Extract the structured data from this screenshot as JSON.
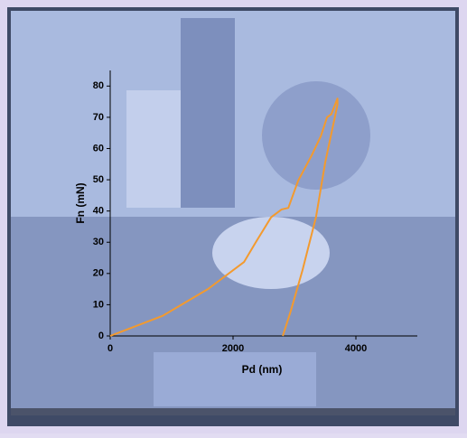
{
  "chart_data": {
    "type": "line",
    "x_label": "Pd (nm)",
    "y_label": "Fn (mN)",
    "xlim": [
      0,
      5000
    ],
    "xticks": [
      0,
      2000,
      4000
    ],
    "ylim": [
      0,
      85
    ],
    "yticks": [
      0,
      10,
      20,
      30,
      40,
      50,
      60,
      70,
      80
    ],
    "series": [
      {
        "color": "#f39a2e",
        "x": [
          0,
          850,
          1590,
          2180,
          2370,
          2620,
          2790,
          2900,
          3060,
          3280,
          3430,
          3530,
          3600,
          3700,
          3700,
          3500,
          3350,
          3130,
          2940,
          2810
        ],
        "values": [
          0,
          6.4,
          15,
          23.7,
          30,
          38,
          40.5,
          41,
          49.7,
          57.8,
          64,
          70,
          71,
          76,
          74,
          55.5,
          38,
          21,
          8,
          0
        ]
      }
    ]
  }
}
